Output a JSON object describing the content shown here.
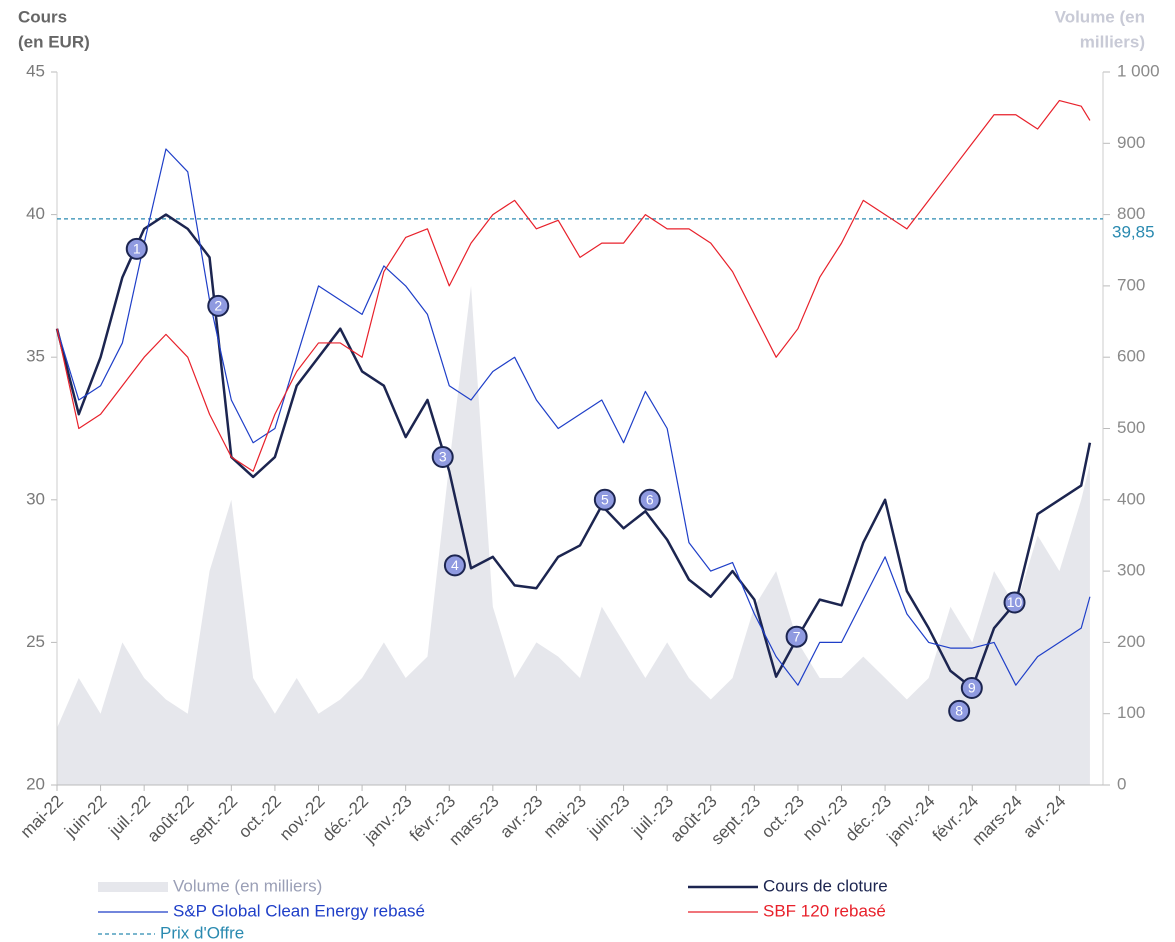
{
  "chart_data": {
    "type": "line",
    "y_label": [
      "Cours",
      "(en EUR)"
    ],
    "y2_label": [
      "Volume (en",
      "milliers)"
    ],
    "xticks": [
      {
        "value": 0,
        "label": "mai-22"
      },
      {
        "value": 1,
        "label": "juin-22"
      },
      {
        "value": 2,
        "label": "juil.-22"
      },
      {
        "value": 3,
        "label": "août-22"
      },
      {
        "value": 4,
        "label": "sept.-22"
      },
      {
        "value": 5,
        "label": "oct.-22"
      },
      {
        "value": 6,
        "label": "nov.-22"
      },
      {
        "value": 7,
        "label": "déc.-22"
      },
      {
        "value": 8,
        "label": "janv.-23"
      },
      {
        "value": 9,
        "label": "févr.-23"
      },
      {
        "value": 10,
        "label": "mars-23"
      },
      {
        "value": 11,
        "label": "avr.-23"
      },
      {
        "value": 12,
        "label": "mai-23"
      },
      {
        "value": 13,
        "label": "juin-23"
      },
      {
        "value": 14,
        "label": "juil.-23"
      },
      {
        "value": 15,
        "label": "août-23"
      },
      {
        "value": 16,
        "label": "sept.-23"
      },
      {
        "value": 17,
        "label": "oct.-23"
      },
      {
        "value": 18,
        "label": "nov.-23"
      },
      {
        "value": 19,
        "label": "déc.-23"
      },
      {
        "value": 20,
        "label": "janv.-24"
      },
      {
        "value": 21,
        "label": "févr.-24"
      },
      {
        "value": 22,
        "label": "mars-24"
      },
      {
        "value": 23,
        "label": "avr.-24"
      }
    ],
    "xlim": [
      0,
      24
    ],
    "ylim": [
      20,
      45
    ],
    "yticks": [
      20,
      25,
      30,
      35,
      40,
      45
    ],
    "y2lim": [
      0,
      1000
    ],
    "y2ticks": [
      0,
      100,
      200,
      300,
      400,
      500,
      600,
      700,
      800,
      900,
      {
        "value": 1000,
        "label": "1 000"
      }
    ],
    "x": [
      0,
      0.5,
      1,
      1.5,
      2,
      2.5,
      3,
      3.5,
      4,
      4.5,
      5,
      5.5,
      6,
      6.5,
      7,
      7.5,
      8,
      8.5,
      9,
      9.5,
      10,
      10.5,
      11,
      11.5,
      12,
      12.5,
      13,
      13.5,
      14,
      14.5,
      15,
      15.5,
      16,
      16.5,
      17,
      17.5,
      18,
      18.5,
      19,
      19.5,
      20,
      20.5,
      21,
      21.5,
      22,
      22.5,
      23,
      23.5,
      23.7
    ],
    "series": [
      {
        "name": "Volume (en milliers)",
        "color": "#e6e7ec",
        "kind": "area",
        "axis": "y2",
        "values": [
          80,
          150,
          100,
          200,
          150,
          120,
          100,
          300,
          400,
          150,
          100,
          150,
          100,
          120,
          150,
          200,
          150,
          180,
          450,
          700,
          250,
          150,
          200,
          180,
          150,
          250,
          200,
          150,
          200,
          150,
          120,
          150,
          250,
          300,
          200,
          150,
          150,
          180,
          150,
          120,
          150,
          250,
          200,
          300,
          250,
          350,
          300,
          400,
          450
        ]
      },
      {
        "name": "Cours de cloture",
        "color": "#1c2550",
        "kind": "line",
        "width": 2.5,
        "values": [
          36,
          33,
          35,
          37.8,
          39.5,
          40,
          39.5,
          38.5,
          31.5,
          30.8,
          31.5,
          34,
          35,
          36,
          34.5,
          34,
          32.2,
          33.5,
          31,
          27.6,
          28,
          27,
          26.9,
          28,
          28.4,
          29.8,
          29,
          29.6,
          28.6,
          27.2,
          26.6,
          27.5,
          26.5,
          23.8,
          25.2,
          26.5,
          26.3,
          28.5,
          30,
          26.8,
          25.5,
          24,
          23.4,
          25.5,
          26.4,
          29.5,
          30,
          30.5,
          32
        ]
      },
      {
        "name": "S&P Global Clean Energy rebasé",
        "color": "#1f3fc8",
        "kind": "line",
        "width": 1.2,
        "values": [
          36,
          33.5,
          34,
          35.5,
          39,
          42.3,
          41.5,
          37,
          33.5,
          32,
          32.5,
          35,
          37.5,
          37,
          36.5,
          38.2,
          37.5,
          36.5,
          34,
          33.5,
          34.5,
          35,
          33.5,
          32.5,
          33,
          33.5,
          32,
          33.8,
          32.5,
          28.5,
          27.5,
          27.8,
          26,
          24.5,
          23.5,
          25,
          25,
          26.5,
          28,
          26,
          25,
          24.8,
          24.8,
          25,
          23.5,
          24.5,
          25,
          25.5,
          26.6
        ]
      },
      {
        "name": "SBF 120 rebasé",
        "color": "#e8212b",
        "kind": "line",
        "width": 1.2,
        "values": [
          36,
          32.5,
          33,
          34,
          35,
          35.8,
          35,
          33,
          31.5,
          31,
          33,
          34.5,
          35.5,
          35.5,
          35,
          38,
          39.2,
          39.5,
          37.5,
          39,
          40,
          40.5,
          39.5,
          39.8,
          38.5,
          39,
          39,
          40,
          39.5,
          39.5,
          39,
          38,
          36.5,
          35,
          36,
          37.8,
          39,
          40.5,
          40,
          39.5,
          40.5,
          41.5,
          42.5,
          43.5,
          43.5,
          43,
          44,
          43.8,
          43.3
        ]
      }
    ],
    "offer": {
      "name": "Prix d'Offre",
      "value": 39.85,
      "value_label": "39,85",
      "color": "#2a8ab0"
    },
    "annotations": [
      {
        "text": "1",
        "x": 1.83,
        "y": 38.8
      },
      {
        "text": "2",
        "x": 3.7,
        "y": 36.8
      },
      {
        "text": "3",
        "x": 8.85,
        "y": 31.5
      },
      {
        "text": "4",
        "x": 9.13,
        "y": 27.7
      },
      {
        "text": "5",
        "x": 12.57,
        "y": 30
      },
      {
        "text": "6",
        "x": 13.6,
        "y": 30
      },
      {
        "text": "7",
        "x": 16.97,
        "y": 25.2
      },
      {
        "text": "8",
        "x": 20.7,
        "y": 22.6
      },
      {
        "text": "9",
        "x": 20.99,
        "y": 23.4
      },
      {
        "text": "10",
        "x": 21.97,
        "y": 26.4
      }
    ]
  }
}
